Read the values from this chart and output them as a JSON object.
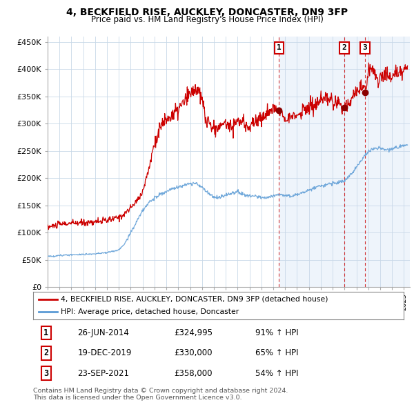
{
  "title": "4, BECKFIELD RISE, AUCKLEY, DONCASTER, DN9 3FP",
  "subtitle": "Price paid vs. HM Land Registry's House Price Index (HPI)",
  "xlim_start": 1995.0,
  "xlim_end": 2025.5,
  "ylim": [
    0,
    460000
  ],
  "red_line_color": "#cc0000",
  "blue_line_color": "#5b9bd5",
  "grid_color": "#c8d8e8",
  "background_color": "#ffffff",
  "chart_bg_color": "#eef4fb",
  "chart_bg_left_color": "#ffffff",
  "sale_dates": [
    2014.49,
    2019.97,
    2021.73
  ],
  "sale_prices": [
    324995,
    330000,
    358000
  ],
  "sale_labels": [
    "1",
    "2",
    "3"
  ],
  "legend_red": "4, BECKFIELD RISE, AUCKLEY, DONCASTER, DN9 3FP (detached house)",
  "legend_blue": "HPI: Average price, detached house, Doncaster",
  "table_data": [
    [
      "1",
      "26-JUN-2014",
      "£324,995",
      "91% ↑ HPI"
    ],
    [
      "2",
      "19-DEC-2019",
      "£330,000",
      "65% ↑ HPI"
    ],
    [
      "3",
      "23-SEP-2021",
      "£358,000",
      "54% ↑ HPI"
    ]
  ],
  "footer": "Contains HM Land Registry data © Crown copyright and database right 2024.\nThis data is licensed under the Open Government Licence v3.0.",
  "yticks": [
    0,
    50000,
    100000,
    150000,
    200000,
    250000,
    300000,
    350000,
    400000,
    450000
  ],
  "ytick_labels": [
    "£0",
    "£50K",
    "£100K",
    "£150K",
    "£200K",
    "£250K",
    "£300K",
    "£350K",
    "£400K",
    "£450K"
  ]
}
